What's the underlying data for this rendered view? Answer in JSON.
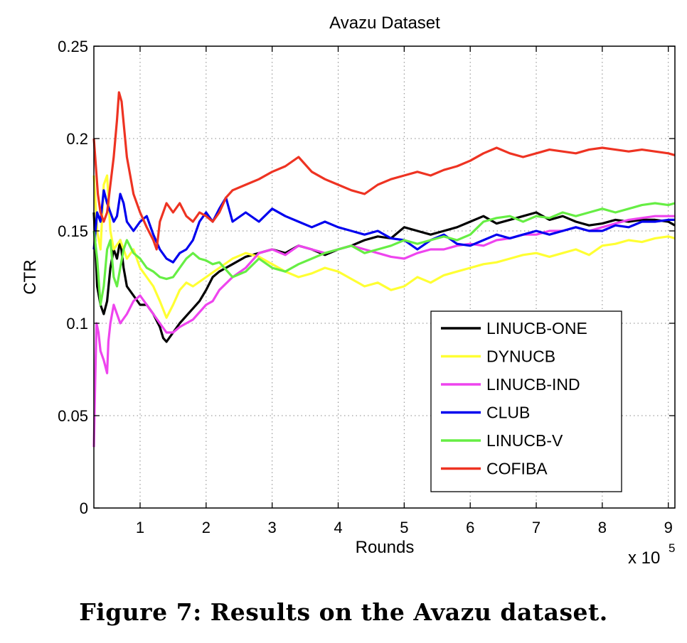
{
  "chart_data": {
    "type": "line",
    "title": "Avazu Dataset",
    "xlabel": "Rounds",
    "ylabel": "CTR",
    "x_multiplier_base": "x 10",
    "x_multiplier_exp": "5",
    "xlim": [
      0.3,
      9.1
    ],
    "ylim": [
      0,
      0.25
    ],
    "xticks": [
      1,
      2,
      3,
      4,
      5,
      6,
      7,
      8,
      9
    ],
    "xtick_labels": [
      "1",
      "2",
      "3",
      "4",
      "5",
      "6",
      "7",
      "8",
      "9"
    ],
    "yticks": [
      0,
      0.05,
      0.1,
      0.15,
      0.2,
      0.25
    ],
    "ytick_labels": [
      "0",
      "0.05",
      "0.1",
      "0.15",
      "0.2",
      "0.25"
    ],
    "grid": true,
    "legend_position": "lower-right",
    "series": [
      {
        "name": "LINUCB-ONE",
        "color": "#000000",
        "x": [
          0.3,
          0.35,
          0.4,
          0.45,
          0.5,
          0.55,
          0.6,
          0.65,
          0.7,
          0.75,
          0.8,
          0.9,
          1.0,
          1.1,
          1.2,
          1.3,
          1.35,
          1.4,
          1.5,
          1.6,
          1.7,
          1.8,
          1.9,
          2.0,
          2.1,
          2.2,
          2.4,
          2.6,
          2.8,
          3.0,
          3.2,
          3.4,
          3.6,
          3.8,
          4.0,
          4.2,
          4.4,
          4.6,
          4.8,
          5.0,
          5.2,
          5.4,
          5.6,
          5.8,
          6.0,
          6.2,
          6.4,
          6.6,
          6.8,
          7.0,
          7.2,
          7.4,
          7.6,
          7.8,
          8.0,
          8.2,
          8.4,
          8.6,
          8.8,
          9.0,
          9.1
        ],
        "y": [
          0.16,
          0.12,
          0.11,
          0.105,
          0.112,
          0.13,
          0.14,
          0.135,
          0.145,
          0.13,
          0.12,
          0.115,
          0.11,
          0.11,
          0.105,
          0.098,
          0.092,
          0.09,
          0.095,
          0.1,
          0.104,
          0.108,
          0.112,
          0.118,
          0.125,
          0.128,
          0.132,
          0.136,
          0.138,
          0.14,
          0.138,
          0.142,
          0.14,
          0.137,
          0.14,
          0.142,
          0.145,
          0.147,
          0.146,
          0.152,
          0.15,
          0.148,
          0.15,
          0.152,
          0.155,
          0.158,
          0.154,
          0.156,
          0.158,
          0.16,
          0.156,
          0.158,
          0.155,
          0.153,
          0.154,
          0.156,
          0.155,
          0.156,
          0.156,
          0.155,
          0.153
        ]
      },
      {
        "name": "DYNUCB",
        "color": "#ffff33",
        "x": [
          0.3,
          0.35,
          0.4,
          0.45,
          0.5,
          0.55,
          0.6,
          0.7,
          0.8,
          0.9,
          1.0,
          1.1,
          1.2,
          1.3,
          1.4,
          1.5,
          1.6,
          1.7,
          1.8,
          2.0,
          2.2,
          2.4,
          2.6,
          2.8,
          3.0,
          3.2,
          3.4,
          3.6,
          3.8,
          4.0,
          4.2,
          4.4,
          4.6,
          4.8,
          5.0,
          5.2,
          5.4,
          5.6,
          5.8,
          6.0,
          6.2,
          6.4,
          6.6,
          6.8,
          7.0,
          7.2,
          7.4,
          7.6,
          7.8,
          8.0,
          8.2,
          8.4,
          8.6,
          8.8,
          9.0,
          9.1
        ],
        "y": [
          0.18,
          0.15,
          0.14,
          0.175,
          0.18,
          0.15,
          0.14,
          0.145,
          0.135,
          0.14,
          0.13,
          0.125,
          0.12,
          0.112,
          0.103,
          0.11,
          0.118,
          0.122,
          0.12,
          0.125,
          0.13,
          0.135,
          0.138,
          0.136,
          0.132,
          0.128,
          0.125,
          0.127,
          0.13,
          0.128,
          0.124,
          0.12,
          0.122,
          0.118,
          0.12,
          0.125,
          0.122,
          0.126,
          0.128,
          0.13,
          0.132,
          0.133,
          0.135,
          0.137,
          0.138,
          0.136,
          0.138,
          0.14,
          0.137,
          0.142,
          0.143,
          0.145,
          0.144,
          0.146,
          0.147,
          0.146
        ]
      },
      {
        "name": "LINUCB-IND",
        "color": "#ee44ee",
        "x": [
          0.3,
          0.32,
          0.34,
          0.37,
          0.4,
          0.45,
          0.5,
          0.52,
          0.55,
          0.6,
          0.65,
          0.7,
          0.8,
          0.9,
          1.0,
          1.1,
          1.2,
          1.3,
          1.4,
          1.5,
          1.6,
          1.7,
          1.8,
          1.9,
          2.0,
          2.1,
          2.2,
          2.4,
          2.6,
          2.8,
          3.0,
          3.2,
          3.4,
          3.6,
          3.8,
          4.0,
          4.2,
          4.4,
          4.6,
          4.8,
          5.0,
          5.2,
          5.4,
          5.6,
          5.8,
          6.0,
          6.2,
          6.4,
          6.6,
          6.8,
          7.0,
          7.2,
          7.4,
          7.6,
          7.8,
          8.0,
          8.2,
          8.4,
          8.6,
          8.8,
          9.0,
          9.1
        ],
        "y": [
          0.033,
          0.07,
          0.1,
          0.095,
          0.085,
          0.08,
          0.073,
          0.09,
          0.1,
          0.11,
          0.105,
          0.1,
          0.105,
          0.112,
          0.115,
          0.11,
          0.105,
          0.1,
          0.095,
          0.095,
          0.098,
          0.1,
          0.102,
          0.106,
          0.11,
          0.112,
          0.118,
          0.125,
          0.13,
          0.138,
          0.14,
          0.137,
          0.142,
          0.14,
          0.138,
          0.14,
          0.142,
          0.14,
          0.138,
          0.136,
          0.135,
          0.138,
          0.14,
          0.14,
          0.142,
          0.143,
          0.142,
          0.145,
          0.146,
          0.148,
          0.148,
          0.15,
          0.15,
          0.152,
          0.15,
          0.152,
          0.154,
          0.156,
          0.157,
          0.158,
          0.158,
          0.158
        ]
      },
      {
        "name": "CLUB",
        "color": "#0000ee",
        "x": [
          0.3,
          0.35,
          0.4,
          0.45,
          0.5,
          0.55,
          0.6,
          0.65,
          0.7,
          0.75,
          0.8,
          0.9,
          1.0,
          1.1,
          1.2,
          1.3,
          1.4,
          1.5,
          1.6,
          1.7,
          1.8,
          1.9,
          2.0,
          2.1,
          2.2,
          2.3,
          2.4,
          2.6,
          2.8,
          3.0,
          3.2,
          3.4,
          3.6,
          3.8,
          4.0,
          4.2,
          4.4,
          4.6,
          4.8,
          5.0,
          5.2,
          5.4,
          5.6,
          5.8,
          6.0,
          6.2,
          6.4,
          6.6,
          6.8,
          7.0,
          7.2,
          7.4,
          7.6,
          7.8,
          8.0,
          8.2,
          8.4,
          8.6,
          8.8,
          9.0,
          9.1
        ],
        "y": [
          0.14,
          0.16,
          0.155,
          0.172,
          0.165,
          0.16,
          0.155,
          0.158,
          0.17,
          0.165,
          0.155,
          0.15,
          0.155,
          0.158,
          0.148,
          0.14,
          0.135,
          0.133,
          0.138,
          0.14,
          0.145,
          0.155,
          0.16,
          0.155,
          0.162,
          0.168,
          0.155,
          0.16,
          0.155,
          0.162,
          0.158,
          0.155,
          0.152,
          0.155,
          0.152,
          0.15,
          0.148,
          0.15,
          0.146,
          0.145,
          0.14,
          0.145,
          0.148,
          0.143,
          0.142,
          0.145,
          0.148,
          0.146,
          0.148,
          0.15,
          0.148,
          0.15,
          0.152,
          0.15,
          0.15,
          0.153,
          0.152,
          0.155,
          0.155,
          0.156,
          0.156
        ]
      },
      {
        "name": "LINUCB-V",
        "color": "#66ee44",
        "x": [
          0.3,
          0.35,
          0.4,
          0.45,
          0.5,
          0.55,
          0.6,
          0.65,
          0.7,
          0.75,
          0.8,
          0.9,
          1.0,
          1.1,
          1.2,
          1.3,
          1.4,
          1.5,
          1.6,
          1.7,
          1.8,
          1.9,
          2.0,
          2.1,
          2.2,
          2.4,
          2.6,
          2.8,
          3.0,
          3.2,
          3.4,
          3.6,
          3.8,
          4.0,
          4.2,
          4.4,
          4.6,
          4.8,
          5.0,
          5.2,
          5.4,
          5.6,
          5.8,
          6.0,
          6.2,
          6.4,
          6.6,
          6.8,
          7.0,
          7.2,
          7.4,
          7.6,
          7.8,
          8.0,
          8.2,
          8.4,
          8.6,
          8.8,
          9.0,
          9.1
        ],
        "y": [
          0.15,
          0.135,
          0.11,
          0.12,
          0.14,
          0.145,
          0.125,
          0.12,
          0.13,
          0.14,
          0.145,
          0.138,
          0.135,
          0.13,
          0.128,
          0.125,
          0.124,
          0.125,
          0.13,
          0.135,
          0.138,
          0.135,
          0.134,
          0.132,
          0.133,
          0.125,
          0.128,
          0.135,
          0.13,
          0.128,
          0.132,
          0.135,
          0.138,
          0.14,
          0.142,
          0.138,
          0.14,
          0.142,
          0.145,
          0.143,
          0.145,
          0.147,
          0.145,
          0.148,
          0.155,
          0.157,
          0.158,
          0.155,
          0.158,
          0.157,
          0.16,
          0.158,
          0.16,
          0.162,
          0.16,
          0.162,
          0.164,
          0.165,
          0.164,
          0.165
        ]
      },
      {
        "name": "COFIBA",
        "color": "#ee3322",
        "x": [
          0.3,
          0.33,
          0.36,
          0.4,
          0.45,
          0.5,
          0.55,
          0.6,
          0.65,
          0.68,
          0.72,
          0.76,
          0.8,
          0.85,
          0.9,
          1.0,
          1.1,
          1.2,
          1.25,
          1.3,
          1.4,
          1.5,
          1.6,
          1.7,
          1.8,
          1.9,
          2.0,
          2.1,
          2.2,
          2.3,
          2.4,
          2.6,
          2.8,
          3.0,
          3.2,
          3.4,
          3.6,
          3.8,
          4.0,
          4.2,
          4.4,
          4.6,
          4.8,
          5.0,
          5.2,
          5.4,
          5.6,
          5.8,
          6.0,
          6.2,
          6.4,
          6.6,
          6.8,
          7.0,
          7.2,
          7.4,
          7.6,
          7.8,
          8.0,
          8.2,
          8.4,
          8.6,
          8.8,
          9.0,
          9.1
        ],
        "y": [
          0.2,
          0.185,
          0.17,
          0.16,
          0.155,
          0.16,
          0.175,
          0.19,
          0.21,
          0.225,
          0.22,
          0.205,
          0.19,
          0.18,
          0.17,
          0.16,
          0.152,
          0.145,
          0.14,
          0.155,
          0.165,
          0.16,
          0.165,
          0.158,
          0.155,
          0.16,
          0.158,
          0.155,
          0.16,
          0.168,
          0.172,
          0.175,
          0.178,
          0.182,
          0.185,
          0.19,
          0.182,
          0.178,
          0.175,
          0.172,
          0.17,
          0.175,
          0.178,
          0.18,
          0.182,
          0.18,
          0.183,
          0.185,
          0.188,
          0.192,
          0.195,
          0.192,
          0.19,
          0.192,
          0.194,
          0.193,
          0.192,
          0.194,
          0.195,
          0.194,
          0.193,
          0.194,
          0.193,
          0.192,
          0.191
        ]
      }
    ]
  },
  "caption": "Figure 7: Results on the Avazu dataset."
}
